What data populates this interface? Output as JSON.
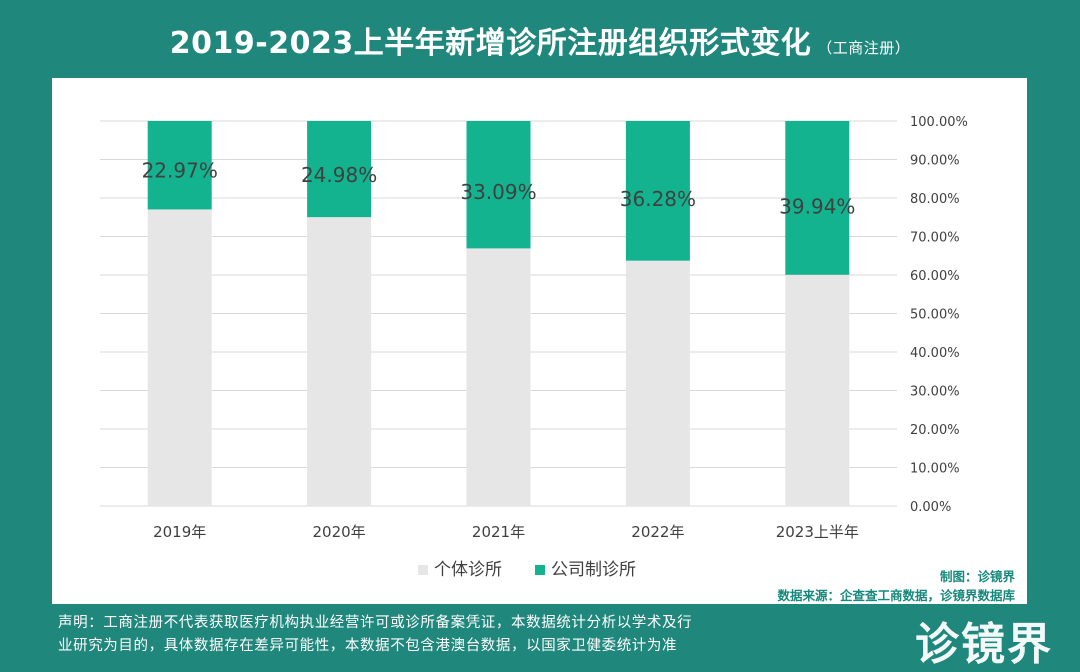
{
  "header": {
    "title": "2019-2023上半年新增诊所注册组织形式变化",
    "subtitle": "（工商注册）"
  },
  "credits": {
    "maker": "制图：诊镜界",
    "source": "数据来源：企查查工商数据，诊镜界数据库"
  },
  "disclaimer": {
    "line1": "声明：工商注册不代表获取医疗机构执业经营许可或诊所备案凭证，本数据统计分析以学术及行",
    "line2": "业研究为目的，具体数据存在差异可能性，本数据不包含港澳台数据，以国家卫健委统计为准"
  },
  "logo": {
    "text": "诊镜界"
  },
  "colors": {
    "background": "#20877d",
    "individual": "#e6e6e6",
    "company": "#13b38f",
    "grid": "#d9d9d9",
    "text": "#404040"
  },
  "chart_data": {
    "type": "bar",
    "stacked": "100%",
    "categories": [
      "2019年",
      "2020年",
      "2021年",
      "2022年",
      "2023上半年"
    ],
    "series": [
      {
        "name": "个体诊所",
        "values": [
          77.03,
          75.02,
          66.91,
          63.72,
          60.06
        ]
      },
      {
        "name": "公司制诊所",
        "values": [
          22.97,
          24.98,
          33.09,
          36.28,
          39.94
        ]
      }
    ],
    "data_labels": [
      "22.97%",
      "24.98%",
      "33.09%",
      "36.28%",
      "39.94%"
    ],
    "y_ticks": [
      "0.00%",
      "10.00%",
      "20.00%",
      "30.00%",
      "40.00%",
      "50.00%",
      "60.00%",
      "70.00%",
      "80.00%",
      "90.00%",
      "100.00%"
    ],
    "ylim": [
      0,
      100
    ],
    "y_axis_position": "right",
    "grid": true,
    "legend_position": "bottom"
  }
}
